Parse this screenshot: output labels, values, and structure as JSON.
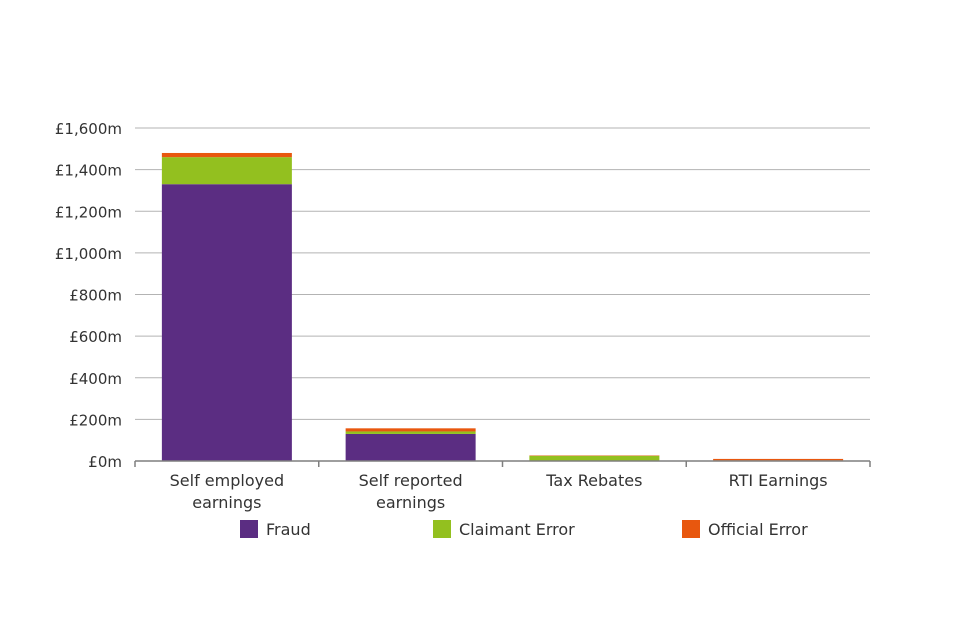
{
  "chart_data": {
    "type": "bar",
    "stacked": true,
    "categories": [
      "Self employed\nearnings",
      "Self reported\nearnings",
      "Tax Rebates",
      "RTI Earnings"
    ],
    "series": [
      {
        "name": "Fraud",
        "color": "#5b2d82",
        "values": [
          1330,
          130,
          0,
          0
        ]
      },
      {
        "name": "Claimant Error",
        "color": "#93c01f",
        "values": [
          130,
          12,
          25,
          3
        ]
      },
      {
        "name": "Official Error",
        "color": "#e8570e",
        "values": [
          20,
          15,
          2,
          7
        ]
      }
    ],
    "y_ticks": [
      "£0m",
      "£200m",
      "£400m",
      "£600m",
      "£800m",
      "£1,000m",
      "£1,200m",
      "£1,400m",
      "£1,600m"
    ],
    "ylim": [
      0,
      1600
    ],
    "grid": true,
    "legend_position": "bottom"
  }
}
